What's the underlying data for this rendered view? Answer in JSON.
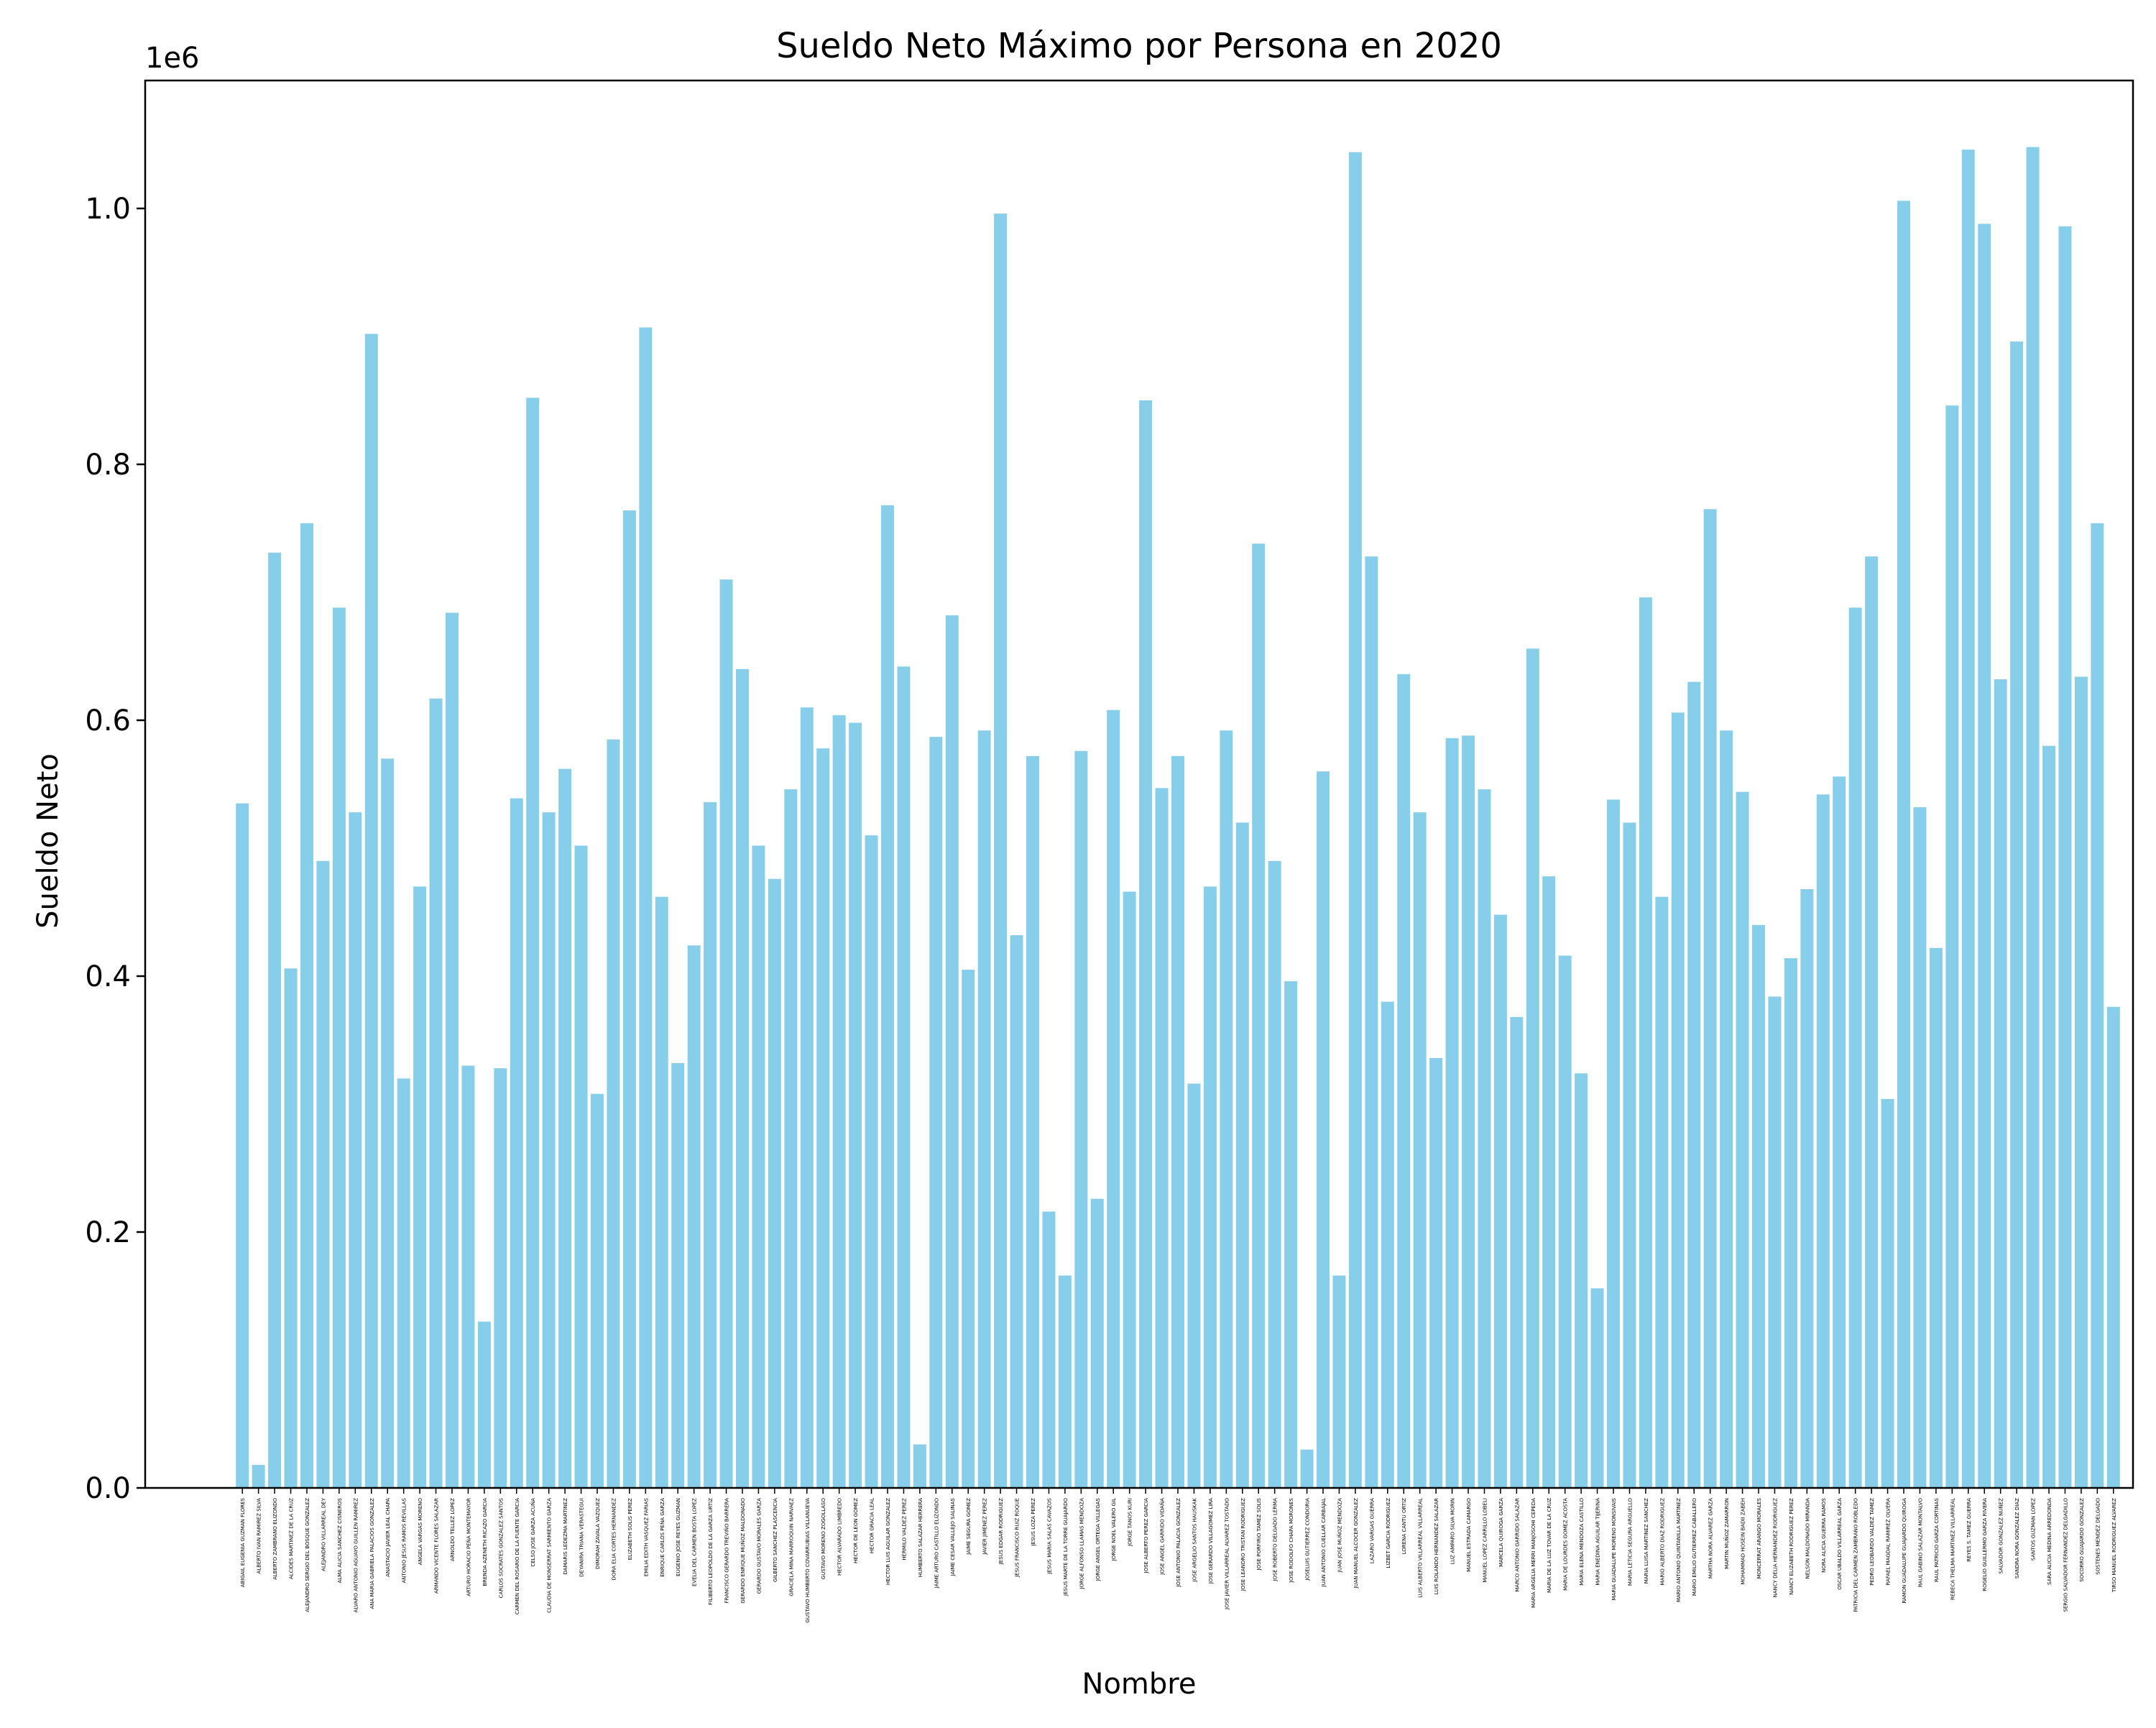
{
  "chart_data": {
    "type": "bar",
    "title": "Sueldo Neto Máximo por Persona en 2020",
    "xlabel": "Nombre",
    "ylabel": "Sueldo Neto",
    "y_offset_label": "1e6",
    "ylim": [
      0,
      1.1
    ],
    "y_ticks": [
      "0.0",
      "0.2",
      "0.4",
      "0.6",
      "0.8",
      "1.0"
    ],
    "bar_color": "#87ceeb",
    "categories": [
      "ABIGAIL EUGENIA GUZMAN FLORES",
      "ALBERTO IVAN RAMIREZ SILVA",
      "ALBERTO ZAMBRANO ELIZONDO",
      "ALCIDES MARTINEZ DE LA CRUZ",
      "ALEJANDRO SERGIO DEL BOSQUE GONZALEZ",
      "ALEJANDRO VILLARREAL DEY",
      "ALMA ALICIA SANCHEZ CISNEROS",
      "ALVARO ANTONIO AGUAYO GUILLEN RAMIREZ",
      "ANA MARIA GABRIELA PALACIOS GONZALEZ",
      "ANASTACIO JAVIER LEAL CHAPA",
      "ANTONIO JESUS RAMOS REVILLAS",
      "ANGELA VARGAS MORENO",
      "ARMANDO VICENTE FLORES SALAZAR",
      "ARNOLDO TELLEZ LOPEZ",
      "ARTURO HORACIO PEÑA MONTEMAYOR",
      "BRENDA AZENETH RICAZO GARCIA",
      "CARLOS SOCRATES GONZALEZ SANTOS",
      "CARMEN DEL ROSARIO DE LA FUENTE GARCIA",
      "CELSO JOSE GARZA ACUÑA",
      "CLAUDIA DE MONSERRAT SARMIENTO GARZA",
      "DAMARIS LEDEZMA MARTINEZ",
      "DEYANIRA TRIANA VERASTEGUI",
      "DIMORAH ZAVALA VAZQUEZ",
      "DORA ELIA CORTES HERNANDEZ",
      "ELIZABETH SOLIS PEREZ",
      "EMILIA EDITH VASQUEZ FARIAS",
      "ENRIQUE CARLOS PEÑA GARZA",
      "EUGENIO JOSE REYES GUZMAN",
      "EVELIA DEL CARMEN BOSTA LOPEZ",
      "FILIBERTO LEOPOLDO DE LA GARZA URTIZ",
      "FRANCISCO GERARDO TREVIÑO BARRERA",
      "GERARDO ENRIQUE MUÑOZ MALDONADO",
      "GERARDO GUSTAVO MORALES GARZA",
      "GILBERTO SANCHEZ PLASCENCIA",
      "GRACIELA MINA MARROQUIN NARVAEZ",
      "GUSTAVO HUMBERTO COVARRUBIAS VILLANUEVA",
      "GUSTAVO MORENO ZOGOLLASO",
      "HECTOR ALVARADO LIMBREDO",
      "HECTOR DE LEON GOMEZ",
      "HECTOR GRACIA LEAL",
      "HECTOR LUIS AGUILAR GONZALEZ",
      "HERMILO VALDEZ PEREZ",
      "HUMBERTO SALAZAR HERRERA",
      "JAIME ARTURO CASTILLO ELIZONDO",
      "JAIME CESAR VALLEJO SALINAS",
      "JAIME SEGURA GOMEZ",
      "JAVIER JIMENEZ PEREZ",
      "JESUS EDGAR RODRIGUEZ",
      "JESUS FRANCISCO RUIZ ROQUE",
      "JESUS LOZA PEREZ",
      "JESUS MARIA SALAS CAVAZOS",
      "JESUS MARTE DE LA TORRE GUAJARDO",
      "JORGE ALFONSO LLAMAS MENDOZA",
      "JORGE ANGEL ORTEGA VILLEGAS",
      "JORGE NOEL VALERO GIL",
      "JORGE TANOS KURI",
      "JOSE ALBERTO PEREZ GARCIA",
      "JOSE ANGEL GARRIDO VIDAÑA",
      "JOSE ANTONIO PALACIA GONZALEZ",
      "JOSE ARGELIO SANTOS HAUSKAK",
      "JOSE GERARDO VILLAGOMEZ LIRA",
      "JOSE JAVIER VILLARREAL ALVAREZ TOSTADO",
      "JOSE LEANDRO TRISTAN RODRIGUEZ",
      "JOSE PORFIRIO TAMEZ SOLIS",
      "JOSE ROBERTO DELGADO LERMA",
      "JOSE RODOLFO CHAPA MORONES",
      "JOSELUIS GUTIERREZ CONDORIA",
      "JUAN ANTONIO CUELLAR CARBAJAL",
      "JUAN JOSE MUÑOZ MENDOZA",
      "JUAN MANUEL ALCOCER GONZALEZ",
      "LAZARO VARGAS GUERRA",
      "LIZBET GARCIA RODRIGUEZ",
      "LORENA CANTU ORTIZ",
      "LUIS ALBERTO VILLARREAL VILLARREAL",
      "LUIS ROLANDO HERNANDEZ SALAZAR",
      "LUZ AMPARO SILVA MORIN",
      "MANUEL ESTRADA CAMARGO",
      "MANUEL LOPEZ CARRILLO LOBELI",
      "MARCELA QUIROGA GARZA",
      "MARCO ANTONIO GARRIDO SALAZAR",
      "MARIA ARGELIA MERRI MANJOSOHI CEPEDA",
      "MARIA DE LA LUZ TOVAR DE LA CRUZ",
      "MARIA DE LOURDES GOMEZ ACOSTA",
      "MARIA ELENA MENDOZA CASTILLO",
      "MARIA ENEDINA AGUILAR TIJERINA",
      "MARIA GUADALUPE MORENO MONSIVAIS",
      "MARIA LETICIA SEGURA ARGUELLO",
      "MARIA LUISA MARTINEZ SANCHEZ",
      "MARIO ALBERTO DIAZ RODRIGUEZ",
      "MARIO ANTONIO QUINTANILLA MARTINEZ",
      "MARIO EMILIO GUTIERREZ CABALLERO",
      "MARTHA NORA ALVAREZ GARZA",
      "MARTIN MUÑOZ ZAMARRON",
      "MOHAMMAD HOSEIN BADII ZABEH",
      "MONCERRAT ARANGO MORALES",
      "NANCY DELIA HERNANDEZ RODRIGUEZ",
      "NANCY ELIZABETH RODRIGUEZ PEREZ",
      "NELSON MALDONADO MIRANDA",
      "NORA ALICIA GUERRA RAMOS",
      "OSCAR UBALDO VILLARREAL GARZA",
      "PATRICIA DEL CARMEN ZAMBRANO ROBLEDO",
      "PEDRO LEOBARDO VALDEZ TAMEZ",
      "RAFAEL MAGDAL RAMIREZ OLVERA",
      "RAMON GUADALUPE GUAJARDO QUIROGA",
      "RAUL GABINO SALAZAR MONTALVO",
      "RAUL PATRICIO GARZA CORTINAS",
      "REBECA THELMA MARTINEZ VILLARREAL",
      "REYES S. TAMEZ GUERRA",
      "ROGELIO GUILLERMO GARZA RIVERA",
      "SALVADOR GONZALEZ NUÑEZ",
      "SANDRA NORA GONZALEZ DIAZ",
      "SANTOS GUZMAN LOPEZ",
      "SARA ALICIA MEDINA ARREDONDA",
      "SERGIO SALVADOR FERNANDEZ DELGADILLO",
      "SOCORRO GUAJARDO GONZALEZ",
      "SOSTENES MENDEZ DELGADO",
      "TIRSO MANUEL RODRIGUEZ ALVAREZ"
    ],
    "values": [
      0.535,
      0.018,
      0.731,
      0.406,
      0.754,
      0.49,
      0.688,
      0.528,
      0.902,
      0.57,
      0.32,
      0.47,
      0.617,
      0.684,
      0.33,
      0.13,
      0.328,
      0.539,
      0.852,
      0.528,
      0.562,
      0.502,
      0.308,
      0.585,
      0.764,
      0.907,
      0.462,
      0.332,
      0.424,
      0.536,
      0.71,
      0.64,
      0.502,
      0.476,
      0.546,
      0.61,
      0.578,
      0.604,
      0.598,
      0.51,
      0.768,
      0.642,
      0.034,
      0.587,
      0.682,
      0.405,
      0.592,
      0.996,
      0.432,
      0.572,
      0.216,
      0.166,
      0.576,
      0.226,
      0.608,
      0.466,
      0.85,
      0.547,
      0.572,
      0.316,
      0.47,
      0.592,
      0.52,
      0.738,
      0.49,
      0.396,
      0.03,
      0.56,
      0.166,
      1.044,
      0.728,
      0.38,
      0.636,
      0.528,
      0.336,
      0.586,
      0.588,
      0.546,
      0.448,
      0.368,
      0.656,
      0.478,
      0.416,
      0.324,
      0.156,
      0.538,
      0.52,
      0.696,
      0.462,
      0.606,
      0.63,
      0.765,
      0.592,
      0.544,
      0.44,
      0.384,
      0.414,
      0.468,
      0.542,
      0.556,
      0.688,
      0.728,
      0.304,
      1.006,
      0.532,
      0.422,
      0.846,
      1.046,
      0.988,
      0.632,
      0.896,
      1.048,
      0.58,
      0.986,
      0.634,
      0.754,
      0.376
    ]
  }
}
